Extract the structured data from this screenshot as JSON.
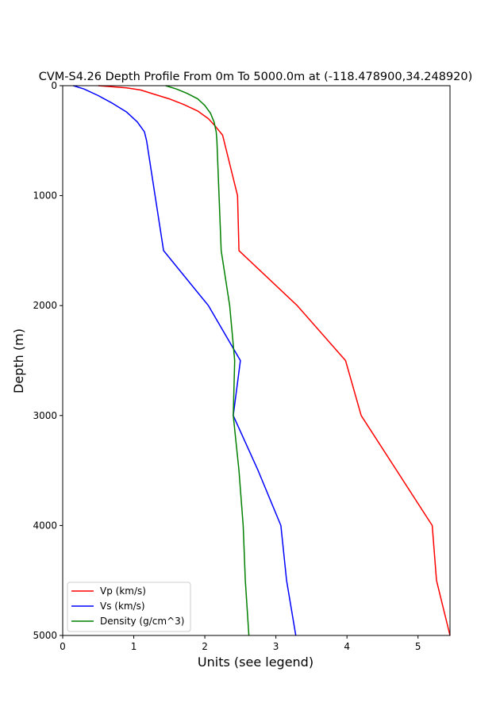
{
  "chart_data": {
    "type": "line",
    "title": "CVM-S4.26 Depth Profile From 0m To 5000.0m at (-118.478900,34.248920)",
    "xlabel": "Units (see legend)",
    "ylabel": "Depth (m)",
    "xlim": [
      0,
      5.45
    ],
    "ylim": [
      0,
      5000
    ],
    "y_inverted": true,
    "xticks": [
      0,
      1,
      2,
      3,
      4,
      5
    ],
    "yticks": [
      0,
      1000,
      2000,
      3000,
      4000,
      5000
    ],
    "grid": false,
    "legend_position": "lower-left",
    "series": [
      {
        "name": "Vp (km/s)",
        "color": "#ff0000",
        "points": [
          [
            0.5,
            0
          ],
          [
            0.9,
            20
          ],
          [
            1.1,
            40
          ],
          [
            1.3,
            80
          ],
          [
            1.5,
            120
          ],
          [
            1.7,
            170
          ],
          [
            1.9,
            230
          ],
          [
            2.05,
            300
          ],
          [
            2.15,
            370
          ],
          [
            2.25,
            450
          ],
          [
            2.46,
            1000
          ],
          [
            2.48,
            1500
          ],
          [
            3.3,
            2000
          ],
          [
            3.98,
            2500
          ],
          [
            4.2,
            3000
          ],
          [
            5.2,
            4000
          ],
          [
            5.26,
            4500
          ],
          [
            5.45,
            5000
          ]
        ]
      },
      {
        "name": "Vs (km/s)",
        "color": "#0000ff",
        "points": [
          [
            0.15,
            0
          ],
          [
            0.3,
            30
          ],
          [
            0.5,
            90
          ],
          [
            0.7,
            160
          ],
          [
            0.9,
            240
          ],
          [
            1.05,
            330
          ],
          [
            1.15,
            420
          ],
          [
            1.18,
            500
          ],
          [
            1.3,
            1000
          ],
          [
            1.42,
            1500
          ],
          [
            2.05,
            2000
          ],
          [
            2.5,
            2500
          ],
          [
            2.4,
            3000
          ],
          [
            2.75,
            3500
          ],
          [
            3.07,
            4000
          ],
          [
            3.15,
            4500
          ],
          [
            3.28,
            5000
          ]
        ]
      },
      {
        "name": "Density (g/cm^3)",
        "color": "#008000",
        "points": [
          [
            1.45,
            0
          ],
          [
            1.6,
            30
          ],
          [
            1.75,
            70
          ],
          [
            1.9,
            120
          ],
          [
            2.0,
            180
          ],
          [
            2.08,
            250
          ],
          [
            2.13,
            330
          ],
          [
            2.16,
            420
          ],
          [
            2.17,
            500
          ],
          [
            2.2,
            1000
          ],
          [
            2.23,
            1500
          ],
          [
            2.35,
            2000
          ],
          [
            2.42,
            2500
          ],
          [
            2.4,
            3000
          ],
          [
            2.48,
            3500
          ],
          [
            2.54,
            4000
          ],
          [
            2.57,
            4500
          ],
          [
            2.62,
            5000
          ]
        ]
      }
    ]
  }
}
